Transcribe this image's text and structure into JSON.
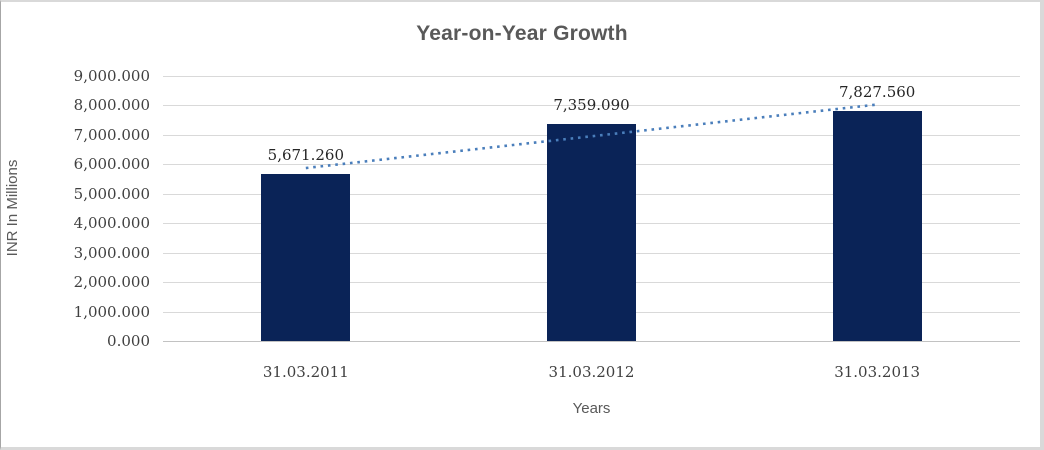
{
  "chart": {
    "title": "Year-on-Year Growth",
    "x_axis_title": "Years",
    "y_axis_title": "INR In Millions"
  },
  "chart_data": {
    "type": "bar",
    "title": "Year-on-Year Growth",
    "xlabel": "Years",
    "ylabel": "INR In Millions",
    "categories": [
      "31.03.2011",
      "31.03.2012",
      "31.03.2013"
    ],
    "values": [
      5671.26,
      7359.09,
      7827.56
    ],
    "data_labels": [
      "5,671.260",
      "7,359.090",
      "7,827.560"
    ],
    "y_ticks": [
      0,
      1000,
      2000,
      3000,
      4000,
      5000,
      6000,
      7000,
      8000,
      9000
    ],
    "y_tick_labels": [
      "0.000",
      "1,000.000",
      "2,000.000",
      "3,000.000",
      "4,000.000",
      "5,000.000",
      "6,000.000",
      "7,000.000",
      "8,000.000",
      "9,000.000"
    ],
    "ylim": [
      0,
      9000
    ],
    "grid": "horizontal",
    "legend_position": "none",
    "trendline": {
      "type": "linear",
      "style": "dotted"
    },
    "colors": {
      "bar": "#0a2357",
      "trendline": "#4a7ebb",
      "gridline": "#d9d9d9",
      "axis_line": "#c2c2c2",
      "title_text": "#595959",
      "tick_text": "#404040",
      "data_label_text": "#262626"
    }
  }
}
